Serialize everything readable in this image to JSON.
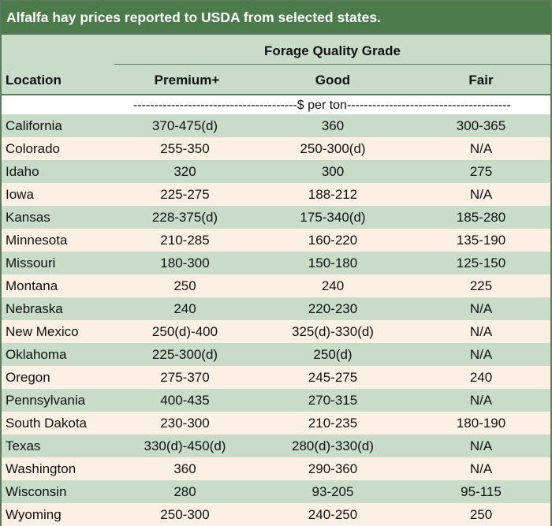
{
  "title": "Alfalfa hay prices reported to USDA from selected states.",
  "header": {
    "group_label": "Forage Quality Grade",
    "location_label": "Location",
    "columns": [
      "Premium+",
      "Good",
      "Fair"
    ]
  },
  "units_label": "---------------------------------------$ per ton---------------------------------------",
  "rows": [
    {
      "location": "California",
      "premium": "370-475(d)",
      "good": "360",
      "fair": "300-365"
    },
    {
      "location": "Colorado",
      "premium": "255-350",
      "good": "250-300(d)",
      "fair": "N/A"
    },
    {
      "location": "Idaho",
      "premium": "320",
      "good": "300",
      "fair": "275"
    },
    {
      "location": "Iowa",
      "premium": "225-275",
      "good": "188-212",
      "fair": "N/A"
    },
    {
      "location": "Kansas",
      "premium": "228-375(d)",
      "good": "175-340(d)",
      "fair": "185-280"
    },
    {
      "location": "Minnesota",
      "premium": "210-285",
      "good": "160-220",
      "fair": "135-190"
    },
    {
      "location": "Missouri",
      "premium": "180-300",
      "good": "150-180",
      "fair": "125-150"
    },
    {
      "location": "Montana",
      "premium": "250",
      "good": "240",
      "fair": "225"
    },
    {
      "location": "Nebraska",
      "premium": "240",
      "good": "220-230",
      "fair": "N/A"
    },
    {
      "location": "New Mexico",
      "premium": "250(d)-400",
      "good": "325(d)-330(d)",
      "fair": "N/A"
    },
    {
      "location": "Oklahoma",
      "premium": "225-300(d)",
      "good": "250(d)",
      "fair": "N/A"
    },
    {
      "location": "Oregon",
      "premium": "275-370",
      "good": "245-275",
      "fair": "240"
    },
    {
      "location": "Pennsylvania",
      "premium": "400-435",
      "good": "270-315",
      "fair": "N/A"
    },
    {
      "location": "South Dakota",
      "premium": "230-300",
      "good": "210-235",
      "fair": "180-190"
    },
    {
      "location": "Texas",
      "premium": "330(d)-450(d)",
      "good": "280(d)-330(d)",
      "fair": "N/A"
    },
    {
      "location": "Washington",
      "premium": "360",
      "good": "290-360",
      "fair": "N/A"
    },
    {
      "location": "Wisconsin",
      "premium": "280",
      "good": "93-205",
      "fair": "95-115"
    },
    {
      "location": "Wyoming",
      "premium": "250-300",
      "good": "240-250",
      "fair": "250"
    }
  ]
}
